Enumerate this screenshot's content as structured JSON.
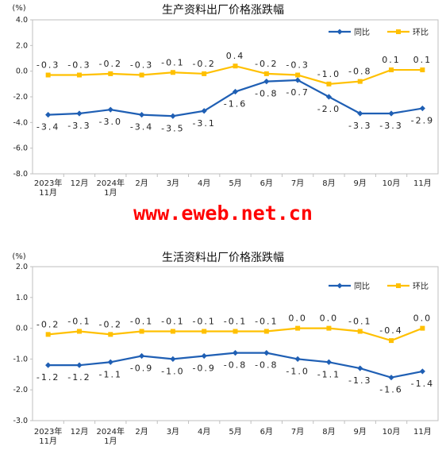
{
  "watermark": "www.eweb.net.cn",
  "chart_data": [
    {
      "type": "line",
      "title": "生产资料出厂价格涨跌幅",
      "unit": "(%)",
      "categories": [
        [
          "2023年",
          "11月"
        ],
        [
          "12月"
        ],
        [
          "2024年",
          "1月"
        ],
        [
          "2月"
        ],
        [
          "3月"
        ],
        [
          "4月"
        ],
        [
          "5月"
        ],
        [
          "6月"
        ],
        [
          "7月"
        ],
        [
          "8月"
        ],
        [
          "9月"
        ],
        [
          "10月"
        ],
        [
          "11月"
        ]
      ],
      "ylim": [
        -8.0,
        4.0
      ],
      "yticks": [
        "4.0",
        "2.0",
        "0.0",
        "-2.0",
        "-4.0",
        "-6.0",
        "-8.0"
      ],
      "ytick_values": [
        4,
        2,
        0,
        -2,
        -4,
        -6,
        -8
      ],
      "legend_position": "top-right",
      "grid": false,
      "series": [
        {
          "name": "同比",
          "color": "#1f5fb4",
          "values": [
            -3.4,
            -3.3,
            -3.0,
            -3.4,
            -3.5,
            -3.1,
            -1.6,
            -0.8,
            -0.7,
            -2.0,
            -3.3,
            -3.3,
            -2.9
          ],
          "labels": [
            "-3.4",
            "-3.3",
            "-3.0",
            "-3.4",
            "-3.5",
            "-3.1",
            "-1.6",
            "-0.8",
            "-0.7",
            "-2.0",
            "-3.3",
            "-3.3",
            "-2.9"
          ]
        },
        {
          "name": "环比",
          "color": "#ffc000",
          "values": [
            -0.3,
            -0.3,
            -0.2,
            -0.3,
            -0.1,
            -0.2,
            0.4,
            -0.2,
            -0.3,
            -1.0,
            -0.8,
            0.1,
            0.1
          ],
          "labels": [
            "-0.3",
            "-0.3",
            "-0.2",
            "-0.3",
            "-0.1",
            "-0.2",
            "0.4",
            "-0.2",
            "-0.3",
            "-1.0",
            "-0.8",
            "0.1",
            "0.1"
          ]
        }
      ]
    },
    {
      "type": "line",
      "title": "生活资料出厂价格涨跌幅",
      "unit": "(%)",
      "categories": [
        [
          "2023年",
          "11月"
        ],
        [
          "12月"
        ],
        [
          "2024年",
          "1月"
        ],
        [
          "2月"
        ],
        [
          "3月"
        ],
        [
          "4月"
        ],
        [
          "5月"
        ],
        [
          "6月"
        ],
        [
          "7月"
        ],
        [
          "8月"
        ],
        [
          "9月"
        ],
        [
          "10月"
        ],
        [
          "11月"
        ]
      ],
      "ylim": [
        -3.0,
        2.0
      ],
      "yticks": [
        "2.0",
        "1.0",
        "0.0",
        "-1.0",
        "-2.0",
        "-3.0"
      ],
      "ytick_values": [
        2,
        1,
        0,
        -1,
        -2,
        -3
      ],
      "legend_position": "top-right",
      "grid": false,
      "series": [
        {
          "name": "同比",
          "color": "#1f5fb4",
          "values": [
            -1.2,
            -1.2,
            -1.1,
            -0.9,
            -1.0,
            -0.9,
            -0.8,
            -0.8,
            -1.0,
            -1.1,
            -1.3,
            -1.6,
            -1.4
          ],
          "labels": [
            "-1.2",
            "-1.2",
            "-1.1",
            "-0.9",
            "-1.0",
            "-0.9",
            "-0.8",
            "-0.8",
            "-1.0",
            "-1.1",
            "-1.3",
            "-1.6",
            "-1.4"
          ]
        },
        {
          "name": "环比",
          "color": "#ffc000",
          "values": [
            -0.2,
            -0.1,
            -0.2,
            -0.1,
            -0.1,
            -0.1,
            -0.1,
            -0.1,
            0.0,
            0.0,
            -0.1,
            -0.4,
            0.0
          ],
          "labels": [
            "-0.2",
            "-0.1",
            "-0.2",
            "-0.1",
            "-0.1",
            "-0.1",
            "-0.1",
            "-0.1",
            "0.0",
            "0.0",
            "-0.1",
            "-0.4",
            "0.0"
          ]
        }
      ]
    }
  ]
}
